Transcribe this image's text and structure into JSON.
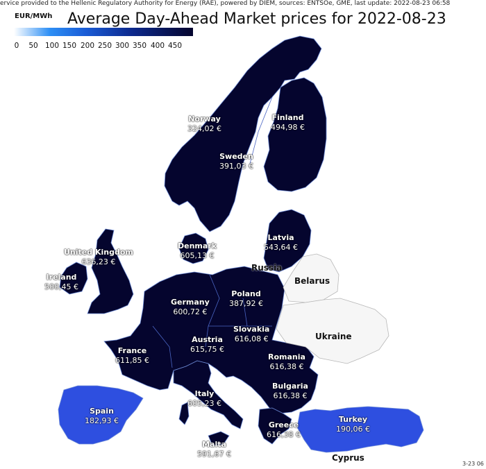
{
  "header": {
    "source_line": "ervice provided to the Hellenic Regulatory Authority for Energy (RAE), powered by DIEM, sources: ENTSOe, GME, last update: 2022-08-23 06:58",
    "title": "Average Day-Ahead Market prices for 2022-08-23"
  },
  "legend": {
    "unit": "EUR/MWh",
    "ticks": [
      "0",
      "50",
      "100",
      "150",
      "200",
      "250",
      "300",
      "350",
      "400",
      "450"
    ],
    "colors": {
      "low": "#ffffff",
      "mid": "#1a5cd6",
      "high": "#05052e"
    }
  },
  "countries": {
    "norway": {
      "name": "Norway",
      "price": "324,02 €"
    },
    "finland": {
      "name": "Finland",
      "price": "494,98 €"
    },
    "sweden": {
      "name": "Sweden",
      "price": "391,03 €"
    },
    "latvia": {
      "name": "Latvia",
      "price": "543,64 €"
    },
    "denmark": {
      "name": "Denmark",
      "price": "605,13 €"
    },
    "uk": {
      "name": "United Kingdom",
      "price": "636,23 €"
    },
    "ireland": {
      "name": "Ireland",
      "price": "500,45 €"
    },
    "poland": {
      "name": "Poland",
      "price": "387,92 €"
    },
    "germany": {
      "name": "Germany",
      "price": "600,72 €"
    },
    "slovakia": {
      "name": "Slovakia",
      "price": "616,08 €"
    },
    "austria": {
      "name": "Austria",
      "price": "615,75 €"
    },
    "france": {
      "name": "France",
      "price": "611,85 €"
    },
    "romania": {
      "name": "Romania",
      "price": "616,38 €"
    },
    "bulgaria": {
      "name": "Bulgaria",
      "price": "616,38 €"
    },
    "italy": {
      "name": "Italy",
      "price": "605,23 €"
    },
    "spain": {
      "name": "Spain",
      "price": "182,93 €"
    },
    "greece": {
      "name": "Greece",
      "price": "616,38 €"
    },
    "turkey": {
      "name": "Turkey",
      "price": "190,06 €"
    },
    "malta": {
      "name": "Malta",
      "price": "591,67 €"
    }
  },
  "no_data_countries": {
    "russia": "Russia",
    "belarus": "Belarus",
    "ukraine": "Ukraine",
    "cyprus": "Cyprus"
  },
  "footer": {
    "timestamp_fragment": "3-23 06"
  }
}
